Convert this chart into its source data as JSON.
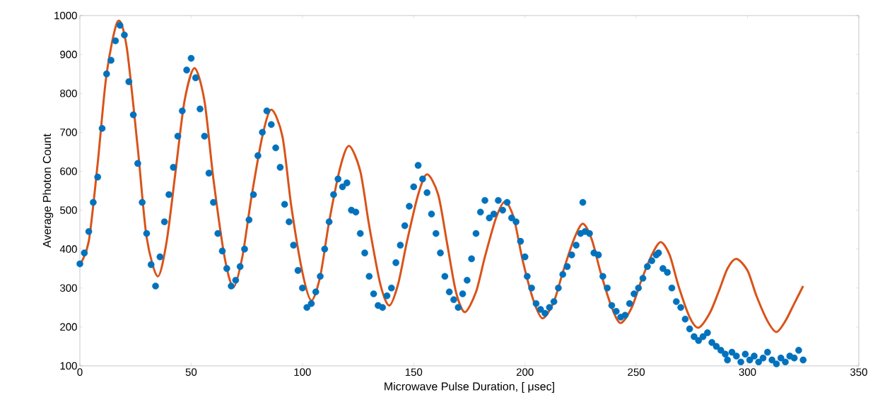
{
  "chart_data": {
    "type": "scatter",
    "xlabel": "Microwave Pulse Duration, [ μsec]",
    "ylabel": "Average Photon Count",
    "xlim": [
      0,
      350
    ],
    "ylim": [
      100,
      1000
    ],
    "xticks": [
      0,
      50,
      100,
      150,
      200,
      250,
      300,
      350
    ],
    "yticks": [
      100,
      200,
      300,
      400,
      500,
      600,
      700,
      800,
      900,
      1000
    ],
    "grid": false,
    "series": [
      {
        "color": "#0072bd",
        "marker": "circle",
        "x": [
          0,
          2,
          4,
          6,
          8,
          10,
          12,
          14,
          16,
          18,
          20,
          22,
          24,
          26,
          28,
          30,
          32,
          34,
          36,
          38,
          40,
          42,
          44,
          46,
          48,
          50,
          52,
          54,
          56,
          58,
          60,
          62,
          64,
          66,
          68,
          70,
          72,
          74,
          76,
          78,
          80,
          82,
          84,
          86,
          88,
          90,
          92,
          94,
          96,
          98,
          100,
          102,
          104,
          106,
          108,
          110,
          112,
          114,
          116,
          118,
          120,
          122,
          124,
          126,
          128,
          130,
          132,
          134,
          136,
          138,
          140,
          142,
          144,
          146,
          148,
          150,
          152,
          154,
          156,
          158,
          160,
          162,
          164,
          166,
          168,
          170,
          172,
          174,
          176,
          178,
          180,
          182,
          184,
          186,
          188,
          190,
          192,
          194,
          196,
          198,
          200,
          201,
          203,
          205,
          207,
          209,
          211,
          213,
          215,
          217,
          219,
          221,
          223,
          225,
          226,
          227,
          229,
          231,
          233,
          235,
          237,
          239,
          241,
          243,
          245,
          247,
          249,
          251,
          253,
          255,
          257,
          259,
          260,
          262,
          264,
          266,
          268,
          270,
          272,
          274,
          276,
          278,
          280,
          282,
          284,
          286,
          288,
          290,
          291,
          293,
          295,
          297,
          299,
          301,
          303,
          305,
          307,
          309,
          311,
          313,
          315,
          317,
          319,
          321,
          323,
          325
        ],
        "values": [
          362,
          390,
          445,
          520,
          585,
          710,
          850,
          885,
          935,
          975,
          950,
          830,
          745,
          620,
          520,
          440,
          360,
          305,
          380,
          470,
          540,
          610,
          690,
          755,
          860,
          890,
          840,
          760,
          690,
          595,
          520,
          440,
          395,
          350,
          305,
          320,
          355,
          400,
          475,
          540,
          640,
          700,
          755,
          720,
          660,
          610,
          515,
          470,
          410,
          345,
          300,
          250,
          260,
          290,
          330,
          400,
          470,
          540,
          580,
          560,
          570,
          500,
          495,
          440,
          390,
          330,
          285,
          255,
          250,
          280,
          300,
          365,
          410,
          460,
          510,
          560,
          615,
          580,
          545,
          490,
          440,
          390,
          330,
          290,
          270,
          250,
          285,
          320,
          375,
          440,
          495,
          525,
          480,
          490,
          525,
          500,
          520,
          480,
          470,
          420,
          380,
          330,
          300,
          260,
          245,
          235,
          250,
          265,
          300,
          335,
          355,
          385,
          410,
          440,
          520,
          445,
          440,
          390,
          385,
          330,
          300,
          255,
          240,
          225,
          230,
          260,
          285,
          300,
          325,
          355,
          370,
          385,
          390,
          350,
          340,
          300,
          265,
          250,
          220,
          195,
          175,
          165,
          175,
          185,
          160,
          150,
          140,
          130,
          115,
          135,
          125,
          110,
          130,
          115,
          125,
          110,
          120,
          135,
          115,
          105,
          120,
          110,
          125,
          120,
          140,
          115
        ]
      },
      {
        "type": "line",
        "color": "#d95319",
        "marker": "none",
        "line_style": "solid",
        "x": [
          0,
          4,
          8,
          12,
          17,
          21,
          26,
          30,
          35,
          39,
          43,
          47,
          51.5,
          56,
          60,
          65,
          69,
          73,
          77,
          82,
          86,
          91,
          95,
          100,
          104,
          108,
          112,
          117,
          121,
          126,
          130,
          135,
          139,
          143,
          147,
          152,
          156,
          161,
          165,
          169,
          173,
          178,
          182,
          187,
          191,
          195,
          199,
          204,
          208,
          213,
          217,
          222,
          226,
          230,
          234,
          239,
          243,
          248,
          252,
          257,
          261,
          265,
          269,
          274,
          278,
          283,
          287,
          291,
          295,
          300,
          304,
          309,
          313,
          317,
          321,
          325
        ],
        "values": [
          360,
          420,
          620,
          850,
          985,
          920,
          660,
          430,
          330,
          420,
          600,
          780,
          865,
          780,
          580,
          380,
          302,
          380,
          530,
          690,
          758,
          690,
          510,
          340,
          268,
          330,
          470,
          610,
          665,
          600,
          460,
          310,
          255,
          310,
          420,
          540,
          592,
          540,
          415,
          290,
          238,
          290,
          380,
          480,
          522,
          480,
          370,
          265,
          222,
          265,
          340,
          425,
          465,
          425,
          340,
          250,
          210,
          250,
          315,
          385,
          418,
          385,
          305,
          225,
          198,
          235,
          290,
          350,
          375,
          345,
          280,
          215,
          187,
          215,
          260,
          305
        ]
      }
    ]
  }
}
